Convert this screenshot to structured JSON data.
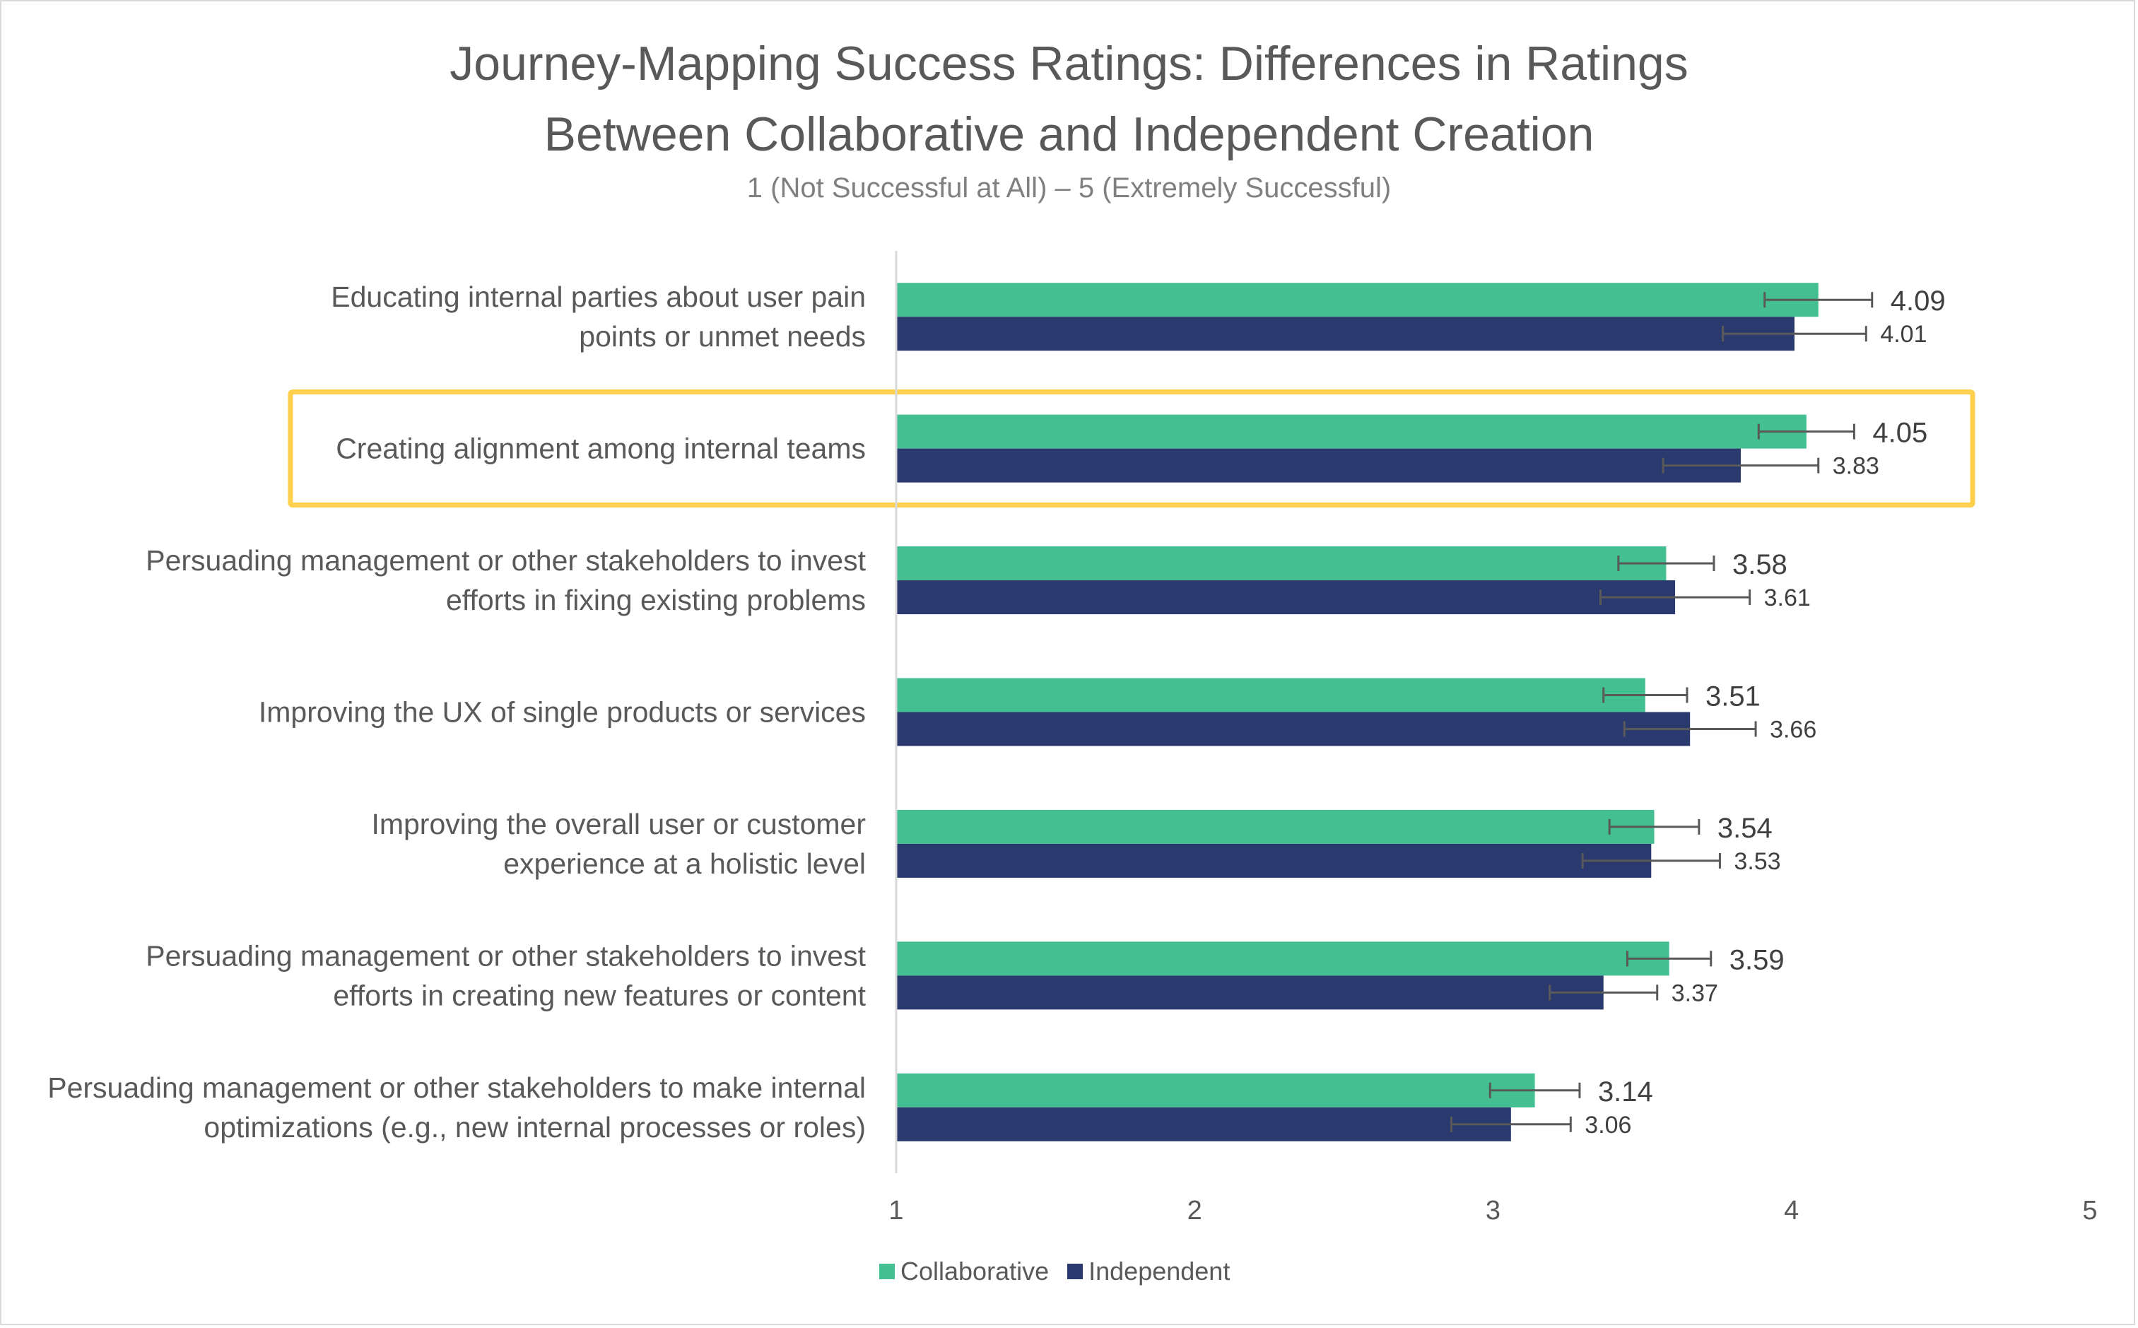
{
  "chart_data": {
    "type": "bar",
    "orientation": "horizontal",
    "title": "Journey-Mapping Success Ratings: Differences in Ratings Between Collaborative and Independent Creation",
    "title_lines": [
      "Journey-Mapping Success Ratings: Differences in Ratings",
      "Between Collaborative and Independent Creation"
    ],
    "subtitle": "1 (Not Successful at All) – 5 (Extremely Successful)",
    "xlabel": "",
    "ylabel": "",
    "xlim": [
      1,
      5
    ],
    "xticks": [
      "1",
      "2",
      "3",
      "4",
      "5"
    ],
    "grid": false,
    "legend_position": "bottom",
    "categories": [
      {
        "lines": [
          "Educating internal parties about user pain",
          "points or unmet needs"
        ],
        "highlighted": false
      },
      {
        "lines": [
          "Creating alignment among internal teams"
        ],
        "highlighted": true
      },
      {
        "lines": [
          "Persuading management or other stakeholders to invest",
          "efforts in fixing existing problems"
        ],
        "highlighted": false
      },
      {
        "lines": [
          "Improving the UX of single products or services"
        ],
        "highlighted": false
      },
      {
        "lines": [
          "Improving the overall user or customer",
          "experience at a holistic level"
        ],
        "highlighted": false
      },
      {
        "lines": [
          "Persuading management or other stakeholders to invest",
          "efforts in creating new features or content"
        ],
        "highlighted": false
      },
      {
        "lines": [
          "Persuading management or other stakeholders to make internal",
          "optimizations (e.g., new internal processes or roles)"
        ],
        "highlighted": false
      }
    ],
    "series": [
      {
        "name": "Collaborative",
        "color": "#43BF91",
        "values": [
          4.09,
          4.05,
          3.58,
          3.51,
          3.54,
          3.59,
          3.14
        ],
        "labels": [
          "4.09",
          "4.05",
          "3.58",
          "3.51",
          "3.54",
          "3.59",
          "3.14"
        ],
        "error": [
          0.18,
          0.16,
          0.16,
          0.14,
          0.15,
          0.14,
          0.15
        ]
      },
      {
        "name": "Independent",
        "color": "#2A3A6E",
        "values": [
          4.01,
          3.83,
          3.61,
          3.66,
          3.53,
          3.37,
          3.06
        ],
        "labels": [
          "4.01",
          "3.83",
          "3.61",
          "3.66",
          "3.53",
          "3.37",
          "3.06"
        ],
        "error": [
          0.24,
          0.26,
          0.25,
          0.22,
          0.23,
          0.18,
          0.2
        ]
      }
    ],
    "highlight_color": "#FFD04D"
  }
}
